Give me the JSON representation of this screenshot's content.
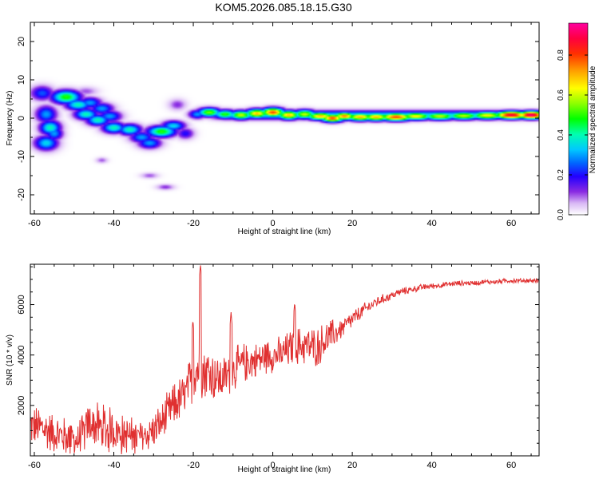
{
  "title": "KOM5.2026.085.18.15.G30",
  "chart_data": [
    {
      "type": "heatmap",
      "xlabel": "Height of straight line (km)",
      "ylabel": "Frequency (Hz)",
      "xlim": [
        -61,
        67
      ],
      "ylim": [
        -25,
        25
      ],
      "xticks": [
        -60,
        -40,
        -20,
        0,
        20,
        40,
        60
      ],
      "yticks": [
        -20,
        -10,
        0,
        10,
        20
      ],
      "colorbar": {
        "label": "Normalized spectral amplitude",
        "range": [
          0,
          0.96
        ],
        "ticks": [
          0.0,
          0.2,
          0.4,
          0.6,
          0.8
        ]
      },
      "blobs": [
        {
          "x": -58,
          "y": 6.5,
          "amp": 0.25,
          "wx": 2.0,
          "wy": 1.3
        },
        {
          "x": -57,
          "y": 1.0,
          "amp": 0.3,
          "wx": 1.8,
          "wy": 1.5
        },
        {
          "x": -56,
          "y": -2.5,
          "amp": 0.4,
          "wx": 1.8,
          "wy": 1.3
        },
        {
          "x": -57,
          "y": -6.5,
          "amp": 0.35,
          "wx": 2.0,
          "wy": 1.3
        },
        {
          "x": -55,
          "y": -4.0,
          "amp": 0.3,
          "wx": 1.5,
          "wy": 1.2
        },
        {
          "x": -52,
          "y": 5.5,
          "amp": 0.5,
          "wx": 2.5,
          "wy": 1.2
        },
        {
          "x": -49,
          "y": 3.5,
          "amp": 0.4,
          "wx": 2.2,
          "wy": 1.0
        },
        {
          "x": -46,
          "y": 4.0,
          "amp": 0.3,
          "wx": 2.0,
          "wy": 1.0
        },
        {
          "x": -47,
          "y": 1.0,
          "amp": 0.4,
          "wx": 2.0,
          "wy": 1.0
        },
        {
          "x": -43,
          "y": 2.5,
          "amp": 0.3,
          "wx": 2.0,
          "wy": 1.0
        },
        {
          "x": -44,
          "y": -0.5,
          "amp": 0.4,
          "wx": 2.0,
          "wy": 1.0
        },
        {
          "x": -41,
          "y": 0.5,
          "amp": 0.3,
          "wx": 2.0,
          "wy": 1.0
        },
        {
          "x": -40,
          "y": -2.5,
          "amp": 0.4,
          "wx": 2.0,
          "wy": 1.0
        },
        {
          "x": -36,
          "y": -3.0,
          "amp": 0.4,
          "wx": 2.0,
          "wy": 1.0
        },
        {
          "x": -33,
          "y": -5.0,
          "amp": 0.3,
          "wx": 2.0,
          "wy": 1.0
        },
        {
          "x": -31,
          "y": -6.5,
          "amp": 0.3,
          "wx": 2.0,
          "wy": 1.0
        },
        {
          "x": -28,
          "y": -3.5,
          "amp": 0.5,
          "wx": 2.5,
          "wy": 1.0
        },
        {
          "x": -25,
          "y": -2.0,
          "amp": 0.35,
          "wx": 2.0,
          "wy": 0.9
        },
        {
          "x": -22,
          "y": -4.0,
          "amp": 0.2,
          "wx": 1.5,
          "wy": 1.0
        },
        {
          "x": -24,
          "y": 3.5,
          "amp": 0.12,
          "wx": 1.5,
          "wy": 1.0
        },
        {
          "x": -19,
          "y": 1.0,
          "amp": 0.3,
          "wx": 1.5,
          "wy": 0.8
        },
        {
          "x": -16,
          "y": 1.5,
          "amp": 0.55,
          "wx": 2.0,
          "wy": 0.8
        },
        {
          "x": -12,
          "y": 1.0,
          "amp": 0.5,
          "wx": 2.0,
          "wy": 0.8
        },
        {
          "x": -8,
          "y": 0.8,
          "amp": 0.6,
          "wx": 2.0,
          "wy": 0.8
        },
        {
          "x": -4,
          "y": 1.2,
          "amp": 0.7,
          "wx": 2.0,
          "wy": 0.8
        },
        {
          "x": 0,
          "y": 1.5,
          "amp": 0.8,
          "wx": 2.0,
          "wy": 0.8
        },
        {
          "x": 4,
          "y": 0.8,
          "amp": 0.7,
          "wx": 2.0,
          "wy": 0.8
        },
        {
          "x": 8,
          "y": 1.0,
          "amp": 0.6,
          "wx": 2.0,
          "wy": 0.8
        },
        {
          "x": 12,
          "y": 0.5,
          "amp": 0.7,
          "wx": 2.5,
          "wy": 0.7
        },
        {
          "x": 15,
          "y": 0.0,
          "amp": 0.8,
          "wx": 2.0,
          "wy": 0.7
        },
        {
          "x": 18,
          "y": 0.5,
          "amp": 0.75,
          "wx": 2.0,
          "wy": 0.7
        },
        {
          "x": 22,
          "y": 0.3,
          "amp": 0.7,
          "wx": 2.5,
          "wy": 0.7
        },
        {
          "x": 26,
          "y": 0.3,
          "amp": 0.7,
          "wx": 2.5,
          "wy": 0.7
        },
        {
          "x": 31,
          "y": 0.3,
          "amp": 0.8,
          "wx": 3.0,
          "wy": 0.7
        },
        {
          "x": 36,
          "y": 0.5,
          "amp": 0.65,
          "wx": 3.0,
          "wy": 0.7
        },
        {
          "x": 42,
          "y": 0.5,
          "amp": 0.6,
          "wx": 3.0,
          "wy": 0.7
        },
        {
          "x": 48,
          "y": 0.6,
          "amp": 0.6,
          "wx": 3.0,
          "wy": 0.7
        },
        {
          "x": 54,
          "y": 0.7,
          "amp": 0.65,
          "wx": 3.0,
          "wy": 0.7
        },
        {
          "x": 60,
          "y": 0.8,
          "amp": 0.9,
          "wx": 3.0,
          "wy": 0.7
        },
        {
          "x": 65,
          "y": 0.8,
          "amp": 0.95,
          "wx": 2.5,
          "wy": 0.7
        },
        {
          "x": -27,
          "y": -18.0,
          "amp": 0.12,
          "wx": 1.5,
          "wy": 0.5
        },
        {
          "x": -31,
          "y": -15.0,
          "amp": 0.1,
          "wx": 1.5,
          "wy": 0.5
        },
        {
          "x": -43,
          "y": -11.0,
          "amp": 0.1,
          "wx": 1.0,
          "wy": 0.5
        },
        {
          "x": -47,
          "y": 7.0,
          "amp": 0.1,
          "wx": 2.0,
          "wy": 0.8
        }
      ],
      "ridge": {
        "x_start": -18,
        "x_end": 67,
        "y": 0.8,
        "amp": 0.35,
        "width_hz": 0.8
      }
    },
    {
      "type": "line",
      "xlabel": "Height of straight line (km)",
      "ylabel": "SNR (10 * v/v)",
      "xlim": [
        -61,
        67
      ],
      "ylim": [
        0,
        7600
      ],
      "xticks": [
        -60,
        -40,
        -20,
        0,
        20,
        40,
        60
      ],
      "yticks": [
        2000,
        4000,
        6000
      ],
      "series": [
        {
          "name": "SNR",
          "color": "#e03030",
          "x": [
            -61,
            -58,
            -55,
            -52,
            -49,
            -46,
            -43,
            -40,
            -37,
            -34,
            -31,
            -28,
            -25,
            -22,
            -19,
            -16,
            -13,
            -10,
            -7,
            -4,
            -1,
            2,
            5,
            8,
            11,
            14,
            17,
            20,
            23,
            26,
            29,
            32,
            35,
            38,
            41,
            44,
            47,
            50,
            53,
            56,
            59,
            62,
            65,
            67
          ],
          "values": [
            1200,
            1100,
            900,
            750,
            600,
            1300,
            1100,
            1000,
            800,
            700,
            900,
            1300,
            2000,
            2400,
            3500,
            3300,
            3000,
            3400,
            3700,
            3800,
            4000,
            4000,
            4300,
            4400,
            4300,
            4700,
            5000,
            5400,
            5800,
            6100,
            6300,
            6500,
            6600,
            6700,
            6750,
            6800,
            6850,
            6850,
            6900,
            6900,
            6950,
            6950,
            6950,
            6950
          ],
          "noise": [
            900,
            1000,
            900,
            900,
            800,
            1000,
            1100,
            1000,
            900,
            800,
            800,
            900,
            1000,
            1100,
            1400,
            1300,
            1000,
            1000,
            900,
            800,
            800,
            800,
            900,
            900,
            900,
            800,
            500,
            400,
            300,
            250,
            200,
            180,
            150,
            140,
            130,
            120,
            120,
            110,
            110,
            110,
            110,
            110,
            110,
            110
          ],
          "peaks": [
            {
              "x": -18.2,
              "y": 7600
            },
            {
              "x": -20.1,
              "y": 5400
            },
            {
              "x": -10.5,
              "y": 5700
            },
            {
              "x": 5.5,
              "y": 6100
            }
          ]
        }
      ]
    }
  ]
}
